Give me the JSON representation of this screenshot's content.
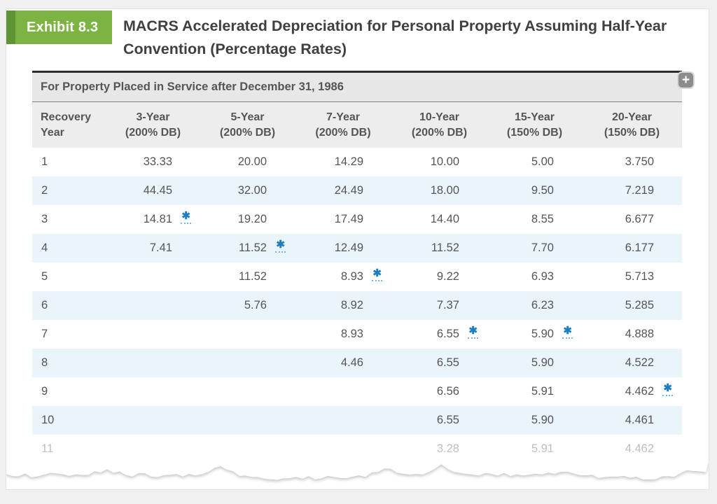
{
  "exhibit": {
    "label": "Exhibit 8.3"
  },
  "title": "MACRS Accelerated Depreciation for Personal Property Assuming Half-Year Convention (Percentage Rates)",
  "table": {
    "caption": "For Property Placed in Service after December 31, 1986",
    "expand_button_label": "+",
    "footnote_marker": "✱",
    "columns": [
      {
        "l1": "Recovery",
        "l2": "Year"
      },
      {
        "l1": "3-Year",
        "l2": "(200% DB)"
      },
      {
        "l1": "5-Year",
        "l2": "(200% DB)"
      },
      {
        "l1": "7-Year",
        "l2": "(200% DB)"
      },
      {
        "l1": "10-Year",
        "l2": "(200% DB)"
      },
      {
        "l1": "15-Year",
        "l2": "(150% DB)"
      },
      {
        "l1": "20-Year",
        "l2": "(150% DB)"
      }
    ],
    "rows": [
      {
        "year": "1",
        "values": [
          "33.33",
          "20.00",
          "14.29",
          "10.00",
          "5.00",
          "3.750"
        ],
        "asterisks": [
          false,
          false,
          false,
          false,
          false,
          false
        ],
        "faded": false
      },
      {
        "year": "2",
        "values": [
          "44.45",
          "32.00",
          "24.49",
          "18.00",
          "9.50",
          "7.219"
        ],
        "asterisks": [
          false,
          false,
          false,
          false,
          false,
          false
        ],
        "faded": false
      },
      {
        "year": "3",
        "values": [
          "14.81",
          "19.20",
          "17.49",
          "14.40",
          "8.55",
          "6.677"
        ],
        "asterisks": [
          true,
          false,
          false,
          false,
          false,
          false
        ],
        "faded": false
      },
      {
        "year": "4",
        "values": [
          "7.41",
          "11.52",
          "12.49",
          "11.52",
          "7.70",
          "6.177"
        ],
        "asterisks": [
          false,
          true,
          false,
          false,
          false,
          false
        ],
        "faded": false
      },
      {
        "year": "5",
        "values": [
          "",
          "11.52",
          "8.93",
          "9.22",
          "6.93",
          "5.713"
        ],
        "asterisks": [
          false,
          false,
          true,
          false,
          false,
          false
        ],
        "faded": false
      },
      {
        "year": "6",
        "values": [
          "",
          "5.76",
          "8.92",
          "7.37",
          "6.23",
          "5.285"
        ],
        "asterisks": [
          false,
          false,
          false,
          false,
          false,
          false
        ],
        "faded": false
      },
      {
        "year": "7",
        "values": [
          "",
          "",
          "8.93",
          "6.55",
          "5.90",
          "4.888"
        ],
        "asterisks": [
          false,
          false,
          false,
          true,
          true,
          false
        ],
        "faded": false
      },
      {
        "year": "8",
        "values": [
          "",
          "",
          "4.46",
          "6.55",
          "5.90",
          "4.522"
        ],
        "asterisks": [
          false,
          false,
          false,
          false,
          false,
          false
        ],
        "faded": false
      },
      {
        "year": "9",
        "values": [
          "",
          "",
          "",
          "6.56",
          "5.91",
          "4.462"
        ],
        "asterisks": [
          false,
          false,
          false,
          false,
          false,
          true
        ],
        "faded": false
      },
      {
        "year": "10",
        "values": [
          "",
          "",
          "",
          "6.55",
          "5.90",
          "4.461"
        ],
        "asterisks": [
          false,
          false,
          false,
          false,
          false,
          false
        ],
        "faded": false
      },
      {
        "year": "11",
        "values": [
          "",
          "",
          "",
          "3.28",
          "5.91",
          "4.462"
        ],
        "asterisks": [
          false,
          false,
          false,
          false,
          false,
          false
        ],
        "faded": true
      }
    ]
  },
  "colors": {
    "badge_green": "#7db343",
    "badge_green_dark": "#5f9434",
    "asterisk_blue": "#1d7fc1",
    "alt_row_blue": "#e9f4fb",
    "header_gray": "#ededed",
    "page_background": "#f0f0f0"
  }
}
